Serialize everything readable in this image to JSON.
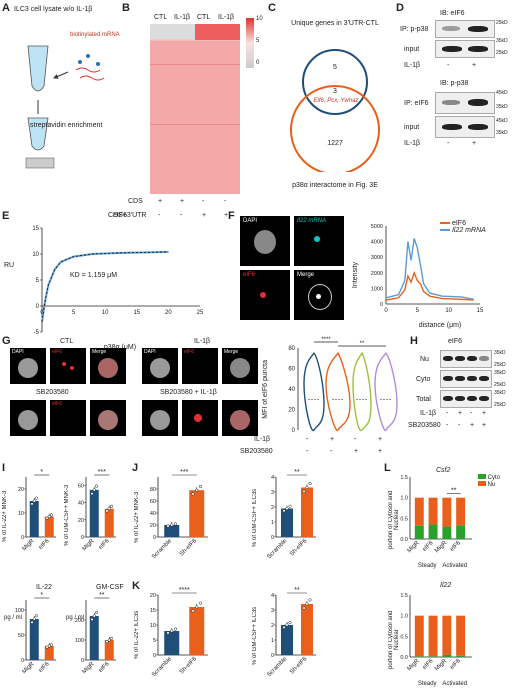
{
  "panelA": {
    "letter": "A",
    "lysate": "ILC3 cell lysate w/o IL-1β",
    "probe": "biotinylated mRNA",
    "enrich": "streptavidin enrichment"
  },
  "panelB": {
    "letter": "B",
    "cols": [
      "CTL",
      "IL-1β",
      "CTL",
      "IL-1β"
    ],
    "scale": [
      "10",
      "5",
      "0"
    ],
    "rows": [
      "CDS",
      "CDS+3'UTR"
    ],
    "cds_marks": [
      "+",
      "+",
      "-",
      "-"
    ],
    "utr_marks": [
      "-",
      "-",
      "+",
      "+"
    ]
  },
  "panelC": {
    "letter": "C",
    "title": "Unique genes in 3'UTR-CTL",
    "top": "5",
    "mid": "3",
    "genes": "Eif6, Pcx, Ywhaz",
    "bottom": "1227",
    "caption": "p38α interactome in Fig. 3E"
  },
  "panelD": {
    "letter": "D",
    "ib1": "IB: eIF6",
    "ip1": "IP: p-p38",
    "input1": "input",
    "il1b": "IL-1β",
    "m1": [
      "25kD",
      "35kD",
      "25kD"
    ],
    "ib2": "IB: p-p38",
    "ip2": "IP: eIF6",
    "input2": "input",
    "m2": [
      "45kD",
      "35kD",
      "45kD",
      "35kD"
    ],
    "marks": [
      "-",
      "+"
    ]
  },
  "panelE": {
    "letter": "E",
    "title": "eIF6",
    "ylabel": "RU",
    "xlabel": "p38α (μM)",
    "kd": "KD = 1.159 μM",
    "yticks": [
      "15",
      "10",
      "5",
      "0",
      "-5"
    ],
    "xticks": [
      "0",
      "5",
      "10",
      "15",
      "20",
      "25"
    ]
  },
  "panelF": {
    "letter": "F",
    "dapi": "DAPI",
    "mrna": "Il22 mRNA",
    "eif6": "eIF6",
    "merge": "Merge",
    "legend": [
      "eIF6",
      "Il22 mRNA"
    ],
    "ylabel": "Intensity",
    "xlabel": "distance (μm)",
    "yticks": [
      "5000",
      "4000",
      "3000",
      "2000",
      "1000",
      "0"
    ],
    "xticks": [
      "0",
      "5",
      "10",
      "15"
    ]
  },
  "panelG": {
    "letter": "G",
    "ctl": "CTL",
    "il1b": "IL-1β",
    "sb": "SB203580",
    "sbil": "SB203580 + IL-1β",
    "ch": [
      "DAPI",
      "eIF6",
      "Merge"
    ],
    "ylabel": "MFI of eIF6 puncta",
    "yticks": [
      "80",
      "60",
      "40",
      "20",
      "0"
    ],
    "sig1": "****",
    "sig2": "**",
    "rowIL": "IL-1β",
    "rowSB": "SB203580",
    "il_marks": [
      "-",
      "+",
      "-",
      "+"
    ],
    "sb_marks": [
      "-",
      "-",
      "+",
      "+"
    ]
  },
  "panelH": {
    "letter": "H",
    "title": "eIF6",
    "rows": [
      "Nu",
      "Cyto",
      "Total"
    ],
    "m": [
      "35kD",
      "25kD",
      "35kD",
      "25kD",
      "35kD",
      "25kD"
    ],
    "il": "IL-1β",
    "sb": "SB203580",
    "il_marks": [
      "-",
      "+",
      "-",
      "+"
    ],
    "sb_marks": [
      "-",
      "-",
      "+",
      "+"
    ]
  },
  "panelI": {
    "letter": "I",
    "y1": "% of IL-22+ MNK-3",
    "y2": "% of GM-CSF+ MNK-3",
    "t3": "IL-22",
    "t4": "GM-CSF",
    "y3": "pg / ml",
    "y4": "pg / ml",
    "x": [
      "MigR",
      "eIF6"
    ],
    "s1": "*",
    "s2": "***",
    "s3": "*",
    "s4": "**"
  },
  "panelJ": {
    "letter": "J",
    "y1": "% of IL-22+ MNK-3",
    "y2": "% of GM-CSF+ ILC3s",
    "x": [
      "Scramble",
      "Sh-eIF6"
    ],
    "s1": "***",
    "s2": "**"
  },
  "panelK": {
    "letter": "K",
    "y1": "% of IL-22+ ILC3s",
    "y2": "% of GM-CSF+ ILC3s",
    "x": [
      "Scramble",
      "Sh-eIF6"
    ],
    "s1": "****",
    "s2": "**"
  },
  "panelL": {
    "letter": "L",
    "t1": "Csf2",
    "t2": "Il22",
    "legend": [
      "Cyto",
      "Nu"
    ],
    "ylabel": "portion of Cytosol and Nuclear",
    "x": [
      "MigR",
      "eIF6",
      "MigR",
      "eIF6"
    ],
    "groups": [
      "Steady",
      "Activated"
    ],
    "sig": "**"
  },
  "colors": {
    "orange": "#e8601c",
    "navy": "#1f4e79",
    "green": "#2ca02c",
    "blue": "#5b9bd5",
    "red": "#e23030"
  },
  "chart_data": [
    {
      "type": "line",
      "panel": "E",
      "title": "eIF6",
      "xlabel": "p38α (μM)",
      "ylabel": "RU",
      "xlim": [
        0,
        25
      ],
      "ylim": [
        -5,
        15
      ],
      "series": [
        {
          "x": [
            0,
            0.5,
            1,
            2,
            3,
            5,
            8,
            12,
            16,
            20
          ],
          "values": [
            -3,
            1,
            4,
            7,
            8.5,
            9.5,
            10,
            10.2,
            10.3,
            10.4
          ]
        }
      ]
    },
    {
      "type": "line",
      "panel": "F",
      "xlabel": "distance (μm)",
      "ylabel": "Intensity",
      "xlim": [
        0,
        15
      ],
      "ylim": [
        0,
        5000
      ],
      "series": [
        {
          "name": "eIF6",
          "x": [
            0,
            2,
            3,
            3.5,
            4,
            4.5,
            5,
            5.5,
            6,
            7,
            9,
            12,
            14
          ],
          "values": [
            250,
            400,
            900,
            1800,
            1400,
            2000,
            1500,
            1300,
            800,
            500,
            350,
            300,
            250
          ]
        },
        {
          "name": "Il22 mRNA",
          "x": [
            0,
            2,
            3,
            3.5,
            4,
            4.5,
            5,
            5.5,
            6,
            7,
            9,
            12,
            14
          ],
          "values": [
            400,
            600,
            1500,
            4000,
            2800,
            4200,
            3600,
            2500,
            1300,
            700,
            500,
            450,
            300
          ]
        }
      ]
    },
    {
      "type": "bar",
      "panel": "I1",
      "categories": [
        "MigR",
        "eIF6"
      ],
      "values": [
        15,
        8.5
      ],
      "ylim": [
        0,
        25
      ]
    },
    {
      "type": "bar",
      "panel": "I2",
      "categories": [
        "MigR",
        "eIF6"
      ],
      "values": [
        55,
        33
      ],
      "ylim": [
        0,
        70
      ]
    },
    {
      "type": "bar",
      "panel": "I3",
      "title": "IL-22",
      "categories": [
        "MigR",
        "eIF6"
      ],
      "values": [
        82,
        28
      ],
      "ylim": [
        0,
        120
      ]
    },
    {
      "type": "bar",
      "panel": "I4",
      "title": "GM-CSF",
      "categories": [
        "MigR",
        "eIF6"
      ],
      "values": [
        220,
        100
      ],
      "ylim": [
        0,
        300
      ]
    },
    {
      "type": "bar",
      "panel": "J1",
      "categories": [
        "Scramble",
        "Sh-eIF6"
      ],
      "values": [
        20,
        78
      ],
      "ylim": [
        0,
        100
      ]
    },
    {
      "type": "bar",
      "panel": "J2",
      "categories": [
        "Scramble",
        "Sh-eIF6"
      ],
      "values": [
        1.9,
        3.3
      ],
      "ylim": [
        0,
        4
      ]
    },
    {
      "type": "bar",
      "panel": "K1",
      "categories": [
        "Scramble",
        "Sh-eIF6"
      ],
      "values": [
        8,
        16
      ],
      "ylim": [
        0,
        20
      ]
    },
    {
      "type": "bar",
      "panel": "K2",
      "categories": [
        "Scramble",
        "Sh-eIF6"
      ],
      "values": [
        2.0,
        3.4
      ],
      "ylim": [
        0,
        4
      ]
    },
    {
      "type": "bar",
      "panel": "L1",
      "title": "Csf2",
      "categories": [
        "MigR",
        "eIF6",
        "MigR",
        "eIF6"
      ],
      "series": [
        {
          "name": "Cyto",
          "values": [
            0.32,
            0.35,
            0.3,
            0.33
          ]
        },
        {
          "name": "Nu",
          "values": [
            0.68,
            0.65,
            0.7,
            0.67
          ]
        }
      ],
      "ylim": [
        0,
        1.5
      ]
    },
    {
      "type": "bar",
      "panel": "L2",
      "title": "Il22",
      "categories": [
        "MigR",
        "eIF6",
        "MigR",
        "eIF6"
      ],
      "series": [
        {
          "name": "Cyto",
          "values": [
            0.02,
            0.02,
            0.05,
            0.03
          ]
        },
        {
          "name": "Nu",
          "values": [
            0.98,
            0.98,
            0.95,
            0.97
          ]
        }
      ],
      "ylim": [
        0,
        1.5
      ]
    }
  ]
}
